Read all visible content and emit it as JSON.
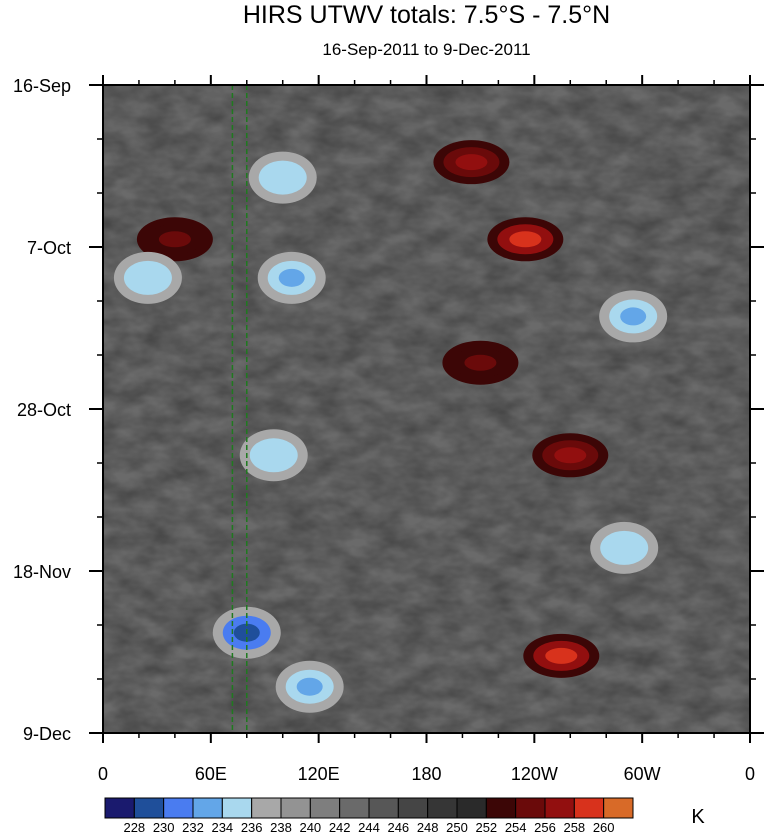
{
  "chart_data": {
    "type": "heatmap",
    "title": "HIRS UTWV totals: 7.5°S - 7.5°N",
    "subtitle": "16-Sep-2011 to 9-Dec-2011",
    "xlabel": "",
    "ylabel": "",
    "x_ticks": [
      {
        "lon": 0,
        "label": "0"
      },
      {
        "lon": 60,
        "label": "60E"
      },
      {
        "lon": 120,
        "label": "120E"
      },
      {
        "lon": 180,
        "label": "180"
      },
      {
        "lon": 240,
        "label": "120W"
      },
      {
        "lon": 300,
        "label": "60W"
      },
      {
        "lon": 360,
        "label": "0"
      }
    ],
    "y_ticks": [
      {
        "day": 0,
        "label": "16-Sep"
      },
      {
        "day": 21,
        "label": "7-Oct"
      },
      {
        "day": 42,
        "label": "28-Oct"
      },
      {
        "day": 63,
        "label": "18-Nov"
      },
      {
        "day": 84,
        "label": "9-Dec"
      }
    ],
    "xlim": [
      0,
      360
    ],
    "ylim": [
      0,
      84
    ],
    "reference_lines_lon": [
      72,
      80
    ],
    "colorbar": {
      "unit": "K",
      "levels": [
        228,
        230,
        232,
        234,
        236,
        238,
        240,
        242,
        244,
        246,
        248,
        250,
        252,
        254,
        256,
        258,
        260
      ],
      "colors": [
        "#1a1a6e",
        "#1f4f9a",
        "#4a7cf0",
        "#63a6e8",
        "#a9d8ee",
        "#a8a8a8",
        "#939393",
        "#7e7e7e",
        "#6a6a6a",
        "#575757",
        "#454545",
        "#363636",
        "#2a2a2a",
        "#3c0606",
        "#6a0a0a",
        "#920f0f",
        "#d8321c",
        "#d86a28"
      ]
    },
    "features": [
      {
        "kind": "high",
        "lon": 205,
        "day": 10,
        "value": 256
      },
      {
        "kind": "high",
        "lon": 235,
        "day": 20,
        "value": 259
      },
      {
        "kind": "high",
        "lon": 210,
        "day": 36,
        "value": 254
      },
      {
        "kind": "high",
        "lon": 260,
        "day": 48,
        "value": 257
      },
      {
        "kind": "high",
        "lon": 255,
        "day": 74,
        "value": 258
      },
      {
        "kind": "high",
        "lon": 40,
        "day": 20,
        "value": 254
      },
      {
        "kind": "low",
        "lon": 80,
        "day": 71,
        "value": 229
      },
      {
        "kind": "low",
        "lon": 100,
        "day": 12,
        "value": 234
      },
      {
        "kind": "low",
        "lon": 105,
        "day": 25,
        "value": 233
      },
      {
        "kind": "low",
        "lon": 95,
        "day": 48,
        "value": 234
      },
      {
        "kind": "low",
        "lon": 295,
        "day": 30,
        "value": 233
      },
      {
        "kind": "low",
        "lon": 290,
        "day": 60,
        "value": 234
      },
      {
        "kind": "low",
        "lon": 25,
        "day": 25,
        "value": 234
      },
      {
        "kind": "low",
        "lon": 115,
        "day": 78,
        "value": 233
      }
    ]
  }
}
